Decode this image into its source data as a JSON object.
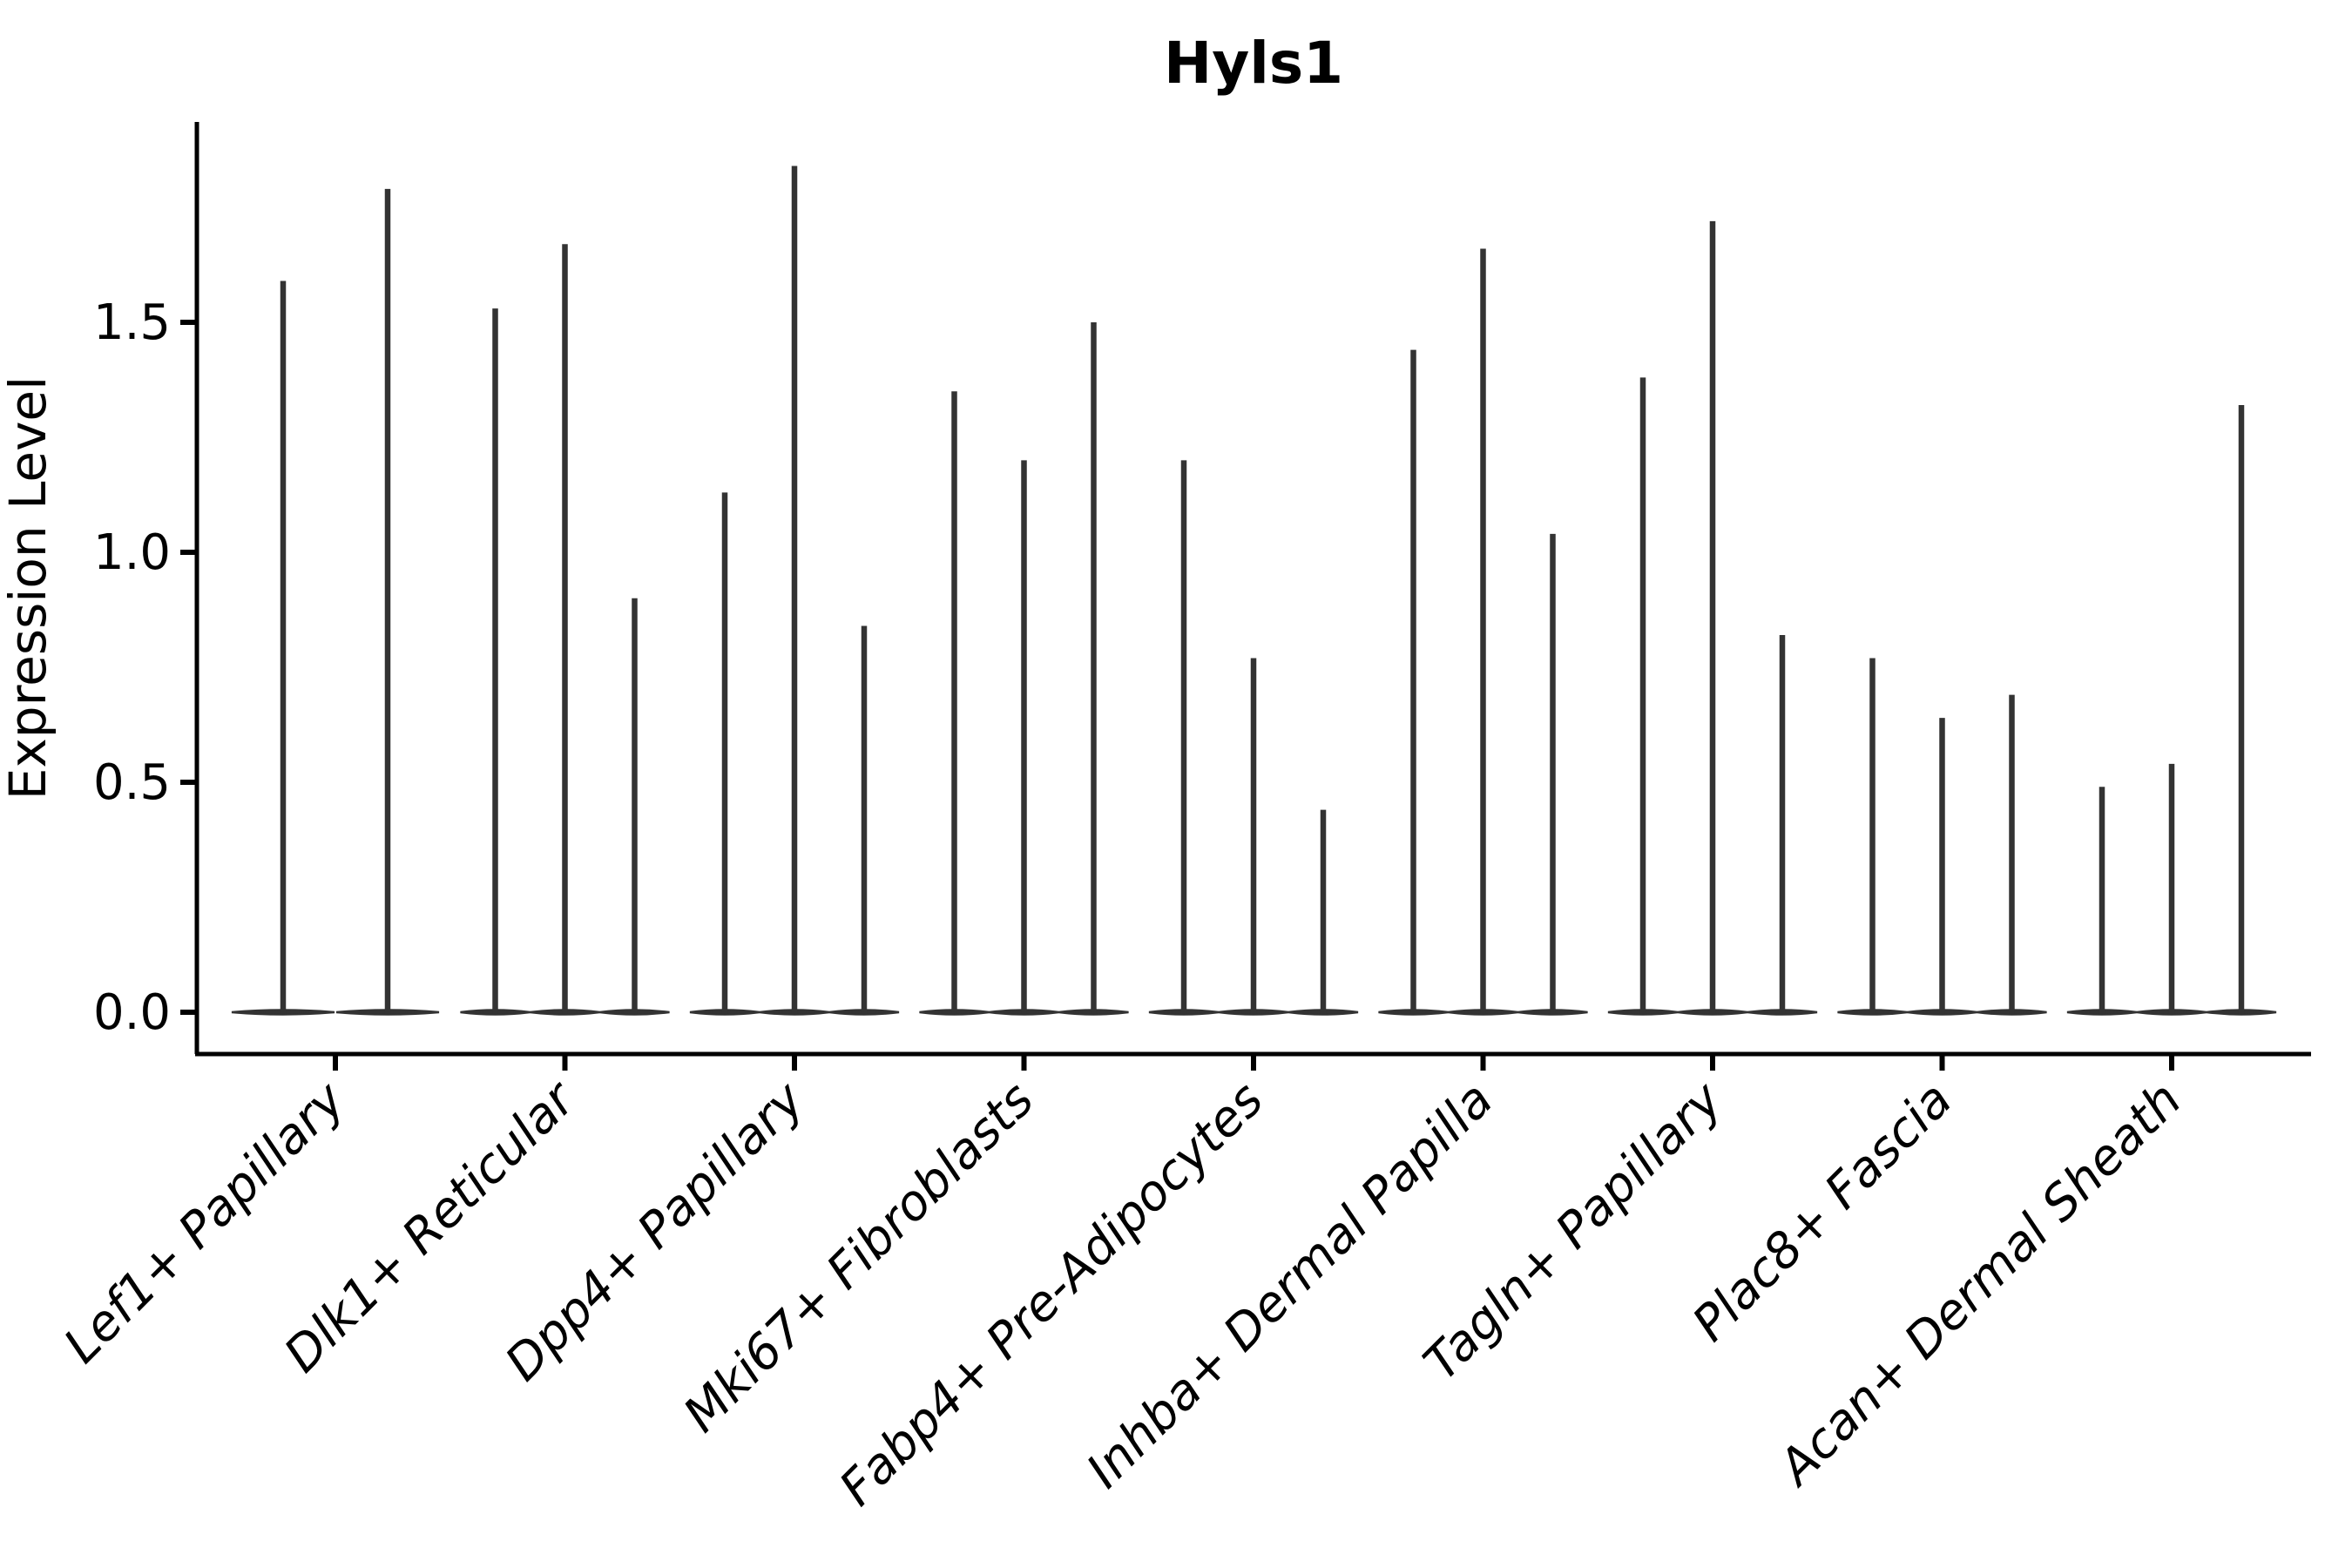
{
  "title": "Hyls1",
  "y_axis": {
    "label": "Expression Level",
    "tick_labels": [
      "0.0",
      "0.5",
      "1.0",
      "1.5"
    ]
  },
  "chart_data": {
    "type": "violin",
    "title": "Hyls1",
    "xlabel": "",
    "ylabel": "Expression Level",
    "ylim": [
      -0.09,
      1.94
    ],
    "yticks": [
      0.0,
      0.5,
      1.0,
      1.5
    ],
    "grid": false,
    "legend": "none",
    "categories": [
      "Lef1+ Papillary",
      "Dlk1+ Reticular",
      "Dpp4+ Papillary",
      "Mki67+ Fibroblasts",
      "Fabp4+ Pre-Adipocytes",
      "Inhba+ Dermal Papilla",
      "Tagln+ Papillary",
      "Plac8+ Fascia",
      "Acan+ Dermal Sheath"
    ],
    "groups": [
      {
        "category": "Lef1+ Papillary",
        "violin_max_values": [
          1.59,
          1.79
        ]
      },
      {
        "category": "Dlk1+ Reticular",
        "violin_max_values": [
          1.53,
          1.67,
          0.9
        ]
      },
      {
        "category": "Dpp4+ Papillary",
        "violin_max_values": [
          1.13,
          1.84,
          0.84
        ]
      },
      {
        "category": "Mki67+ Fibroblasts",
        "violin_max_values": [
          1.35,
          1.2,
          1.5
        ]
      },
      {
        "category": "Fabp4+ Pre-Adipocytes",
        "violin_max_values": [
          1.2,
          0.77,
          0.44
        ]
      },
      {
        "category": "Inhba+ Dermal Papilla",
        "violin_max_values": [
          1.44,
          1.66,
          1.04
        ]
      },
      {
        "category": "Tagln+ Papillary",
        "violin_max_values": [
          1.38,
          1.72,
          0.82
        ]
      },
      {
        "category": "Plac8+ Fascia",
        "violin_max_values": [
          0.77,
          0.64,
          0.69
        ]
      },
      {
        "category": "Acan+ Dermal Sheath",
        "violin_max_values": [
          0.49,
          0.54,
          1.32
        ]
      }
    ],
    "baseline_value": 0.0,
    "violin_shape_note": "each violin collapses to a thin vertical spike with a wide flat base at expression 0"
  },
  "style": {
    "violin_color": "#333333",
    "axis_color": "#000000",
    "text_color": "#000000",
    "background": "#ffffff"
  }
}
